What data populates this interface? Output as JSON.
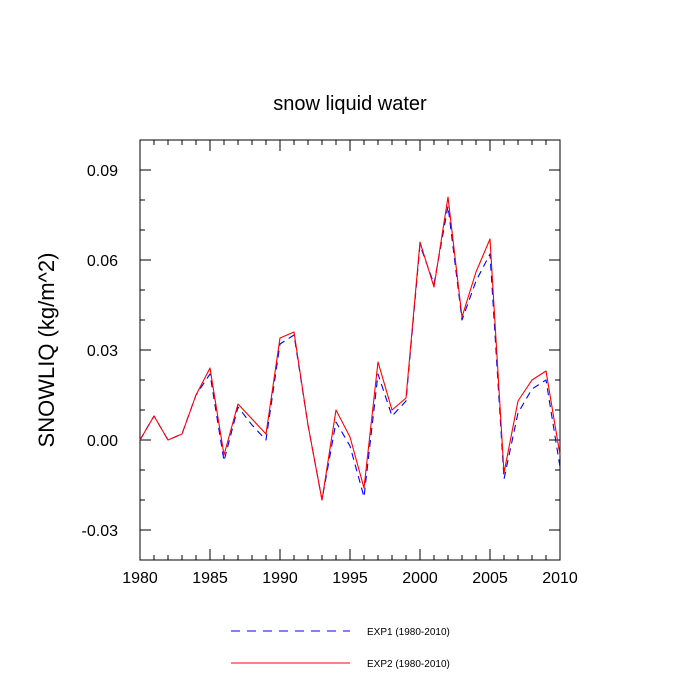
{
  "chart_data": {
    "type": "line",
    "title": "snow liquid water",
    "xlabel": "",
    "ylabel": "SNOWLIQ  (kg/m^2)",
    "xlim": [
      1980,
      2010
    ],
    "ylim": [
      -0.04,
      0.1
    ],
    "xticks": [
      1980,
      1985,
      1990,
      1995,
      2000,
      2005,
      2010
    ],
    "xtick_labels": [
      "1980",
      "1985",
      "1990",
      "1995",
      "2000",
      "2005",
      "2010"
    ],
    "yticks": [
      -0.03,
      0.0,
      0.03,
      0.06,
      0.09
    ],
    "ytick_labels": [
      "-0.03",
      "0.00",
      "0.03",
      "0.06",
      "0.09"
    ],
    "grid": false,
    "legend_position": "bottom-center",
    "x": [
      1980,
      1981,
      1982,
      1983,
      1984,
      1985,
      1986,
      1987,
      1988,
      1989,
      1990,
      1991,
      1992,
      1993,
      1994,
      1995,
      1996,
      1997,
      1998,
      1999,
      2000,
      2001,
      2002,
      2003,
      2004,
      2005,
      2006,
      2007,
      2008,
      2009,
      2010
    ],
    "series": [
      {
        "name": "EXP1 (1980-2010)",
        "color": "#0000ff",
        "style": "dashed",
        "values": [
          0.0,
          0.008,
          0.0,
          0.002,
          0.015,
          0.022,
          -0.007,
          0.011,
          0.005,
          0.0,
          0.032,
          0.035,
          0.005,
          -0.02,
          0.006,
          -0.002,
          -0.019,
          0.022,
          0.008,
          0.013,
          0.065,
          0.052,
          0.078,
          0.04,
          0.053,
          0.062,
          -0.013,
          0.009,
          0.017,
          0.02,
          -0.009
        ]
      },
      {
        "name": "EXP2 (1980-2010)",
        "color": "#ff0000",
        "style": "solid",
        "values": [
          0.0,
          0.008,
          0.0,
          0.002,
          0.015,
          0.024,
          -0.005,
          0.012,
          0.007,
          0.002,
          0.034,
          0.036,
          0.005,
          -0.02,
          0.01,
          0.001,
          -0.016,
          0.026,
          0.01,
          0.014,
          0.066,
          0.051,
          0.081,
          0.041,
          0.056,
          0.067,
          -0.011,
          0.013,
          0.02,
          0.023,
          -0.005
        ]
      }
    ]
  }
}
